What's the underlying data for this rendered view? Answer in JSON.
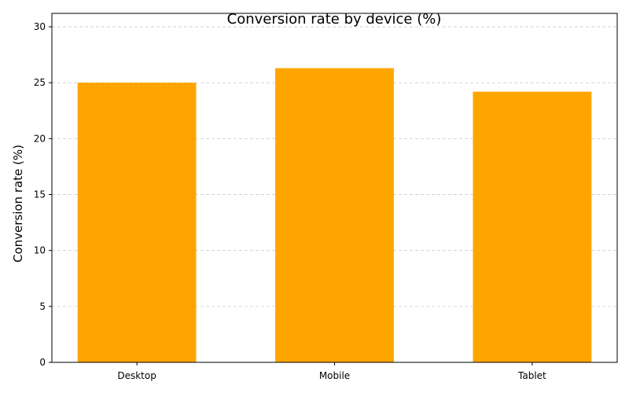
{
  "chart_data": {
    "type": "bar",
    "title": "Conversion rate by device (%)",
    "xlabel": "",
    "ylabel": "Conversion rate (%)",
    "categories": [
      "Desktop",
      "Mobile",
      "Tablet"
    ],
    "values": [
      25.0,
      26.3,
      24.2
    ],
    "ylim": [
      0,
      31.2
    ],
    "yticks": [
      0,
      5,
      10,
      15,
      20,
      25,
      30
    ],
    "bar_color": "#ffa500",
    "grid": true,
    "grid_axis": "y",
    "legend": "none"
  }
}
